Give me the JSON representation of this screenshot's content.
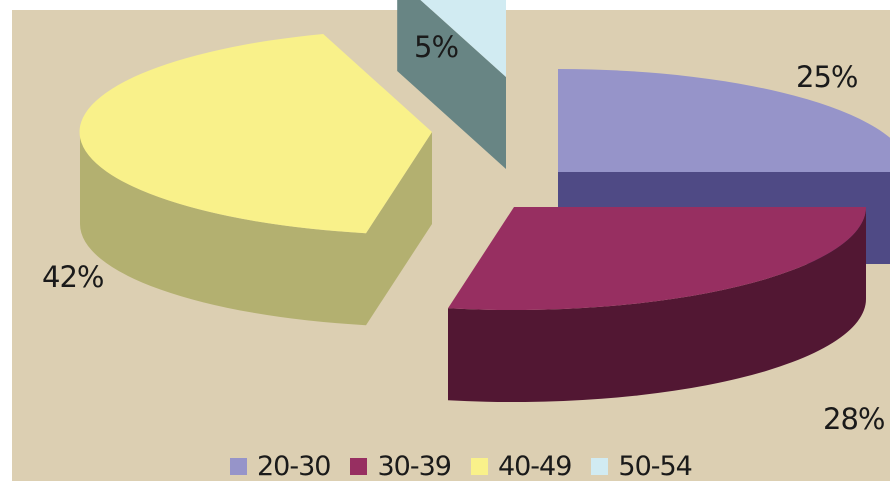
{
  "chart_data": {
    "type": "pie",
    "style": "3d-exploded",
    "categories": [
      "20-30",
      "30-39",
      "40-49",
      "50-54"
    ],
    "values": [
      25,
      28,
      42,
      5
    ],
    "data_labels": [
      "25%",
      "28%",
      "42%",
      "5%"
    ],
    "colors": {
      "top": [
        "#9694c9",
        "#972f61",
        "#f9f18a",
        "#d1ebf2"
      ],
      "side": [
        "#4f4a85",
        "#521733",
        "#b3b070",
        "#688584"
      ]
    },
    "legend_position": "bottom",
    "background": "#dccfb2"
  }
}
